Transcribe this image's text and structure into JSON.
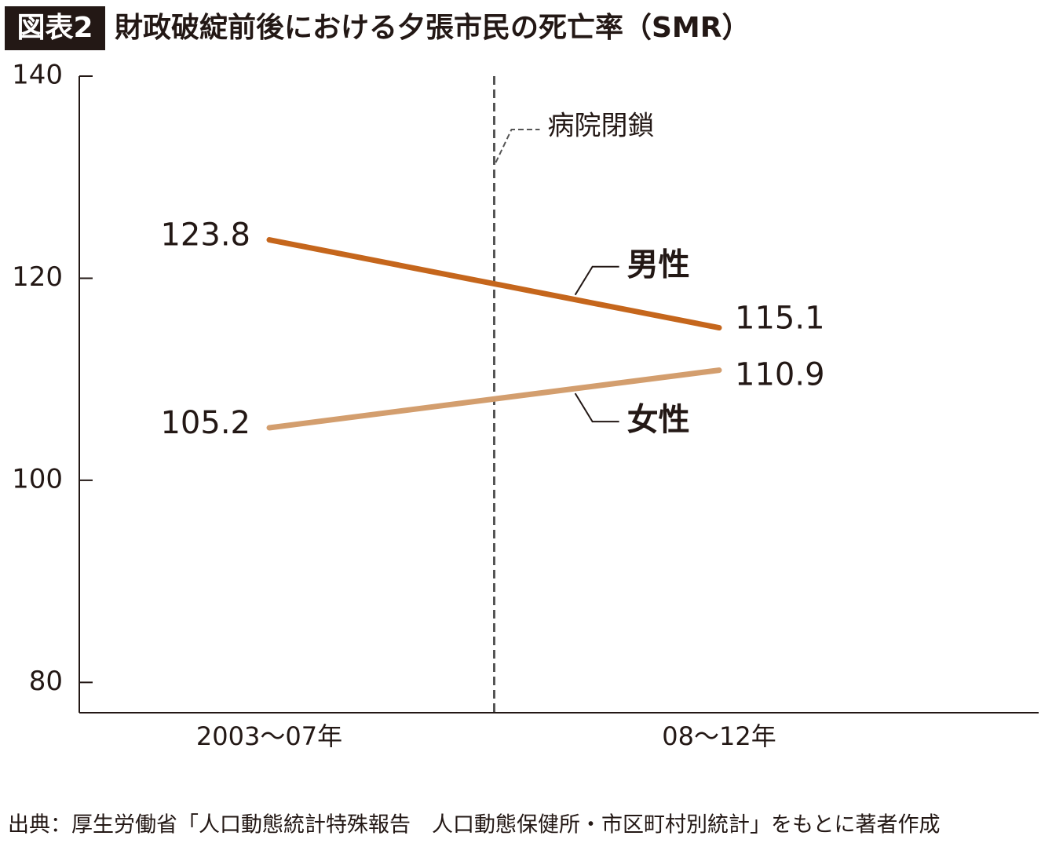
{
  "chart_data": {
    "type": "line",
    "title_label": "図表2",
    "title": "財政破綻前後における夕張市民の死亡率（SMR）",
    "categories": [
      "2003～07年",
      "08～12年"
    ],
    "series": [
      {
        "name": "男性",
        "color": "#c5661c",
        "values": [
          123.8,
          115.1
        ]
      },
      {
        "name": "女性",
        "color": "#d39e6e",
        "values": [
          105.2,
          110.9
        ]
      }
    ],
    "ylim": [
      77,
      140
    ],
    "yticks": [
      80,
      100,
      120,
      140
    ],
    "annotation": "病院閉鎖",
    "source": "出典：厚生労働省「人口動態統計特殊報告　人口動態保健所・市区町村別統計」をもとに著者作成"
  }
}
